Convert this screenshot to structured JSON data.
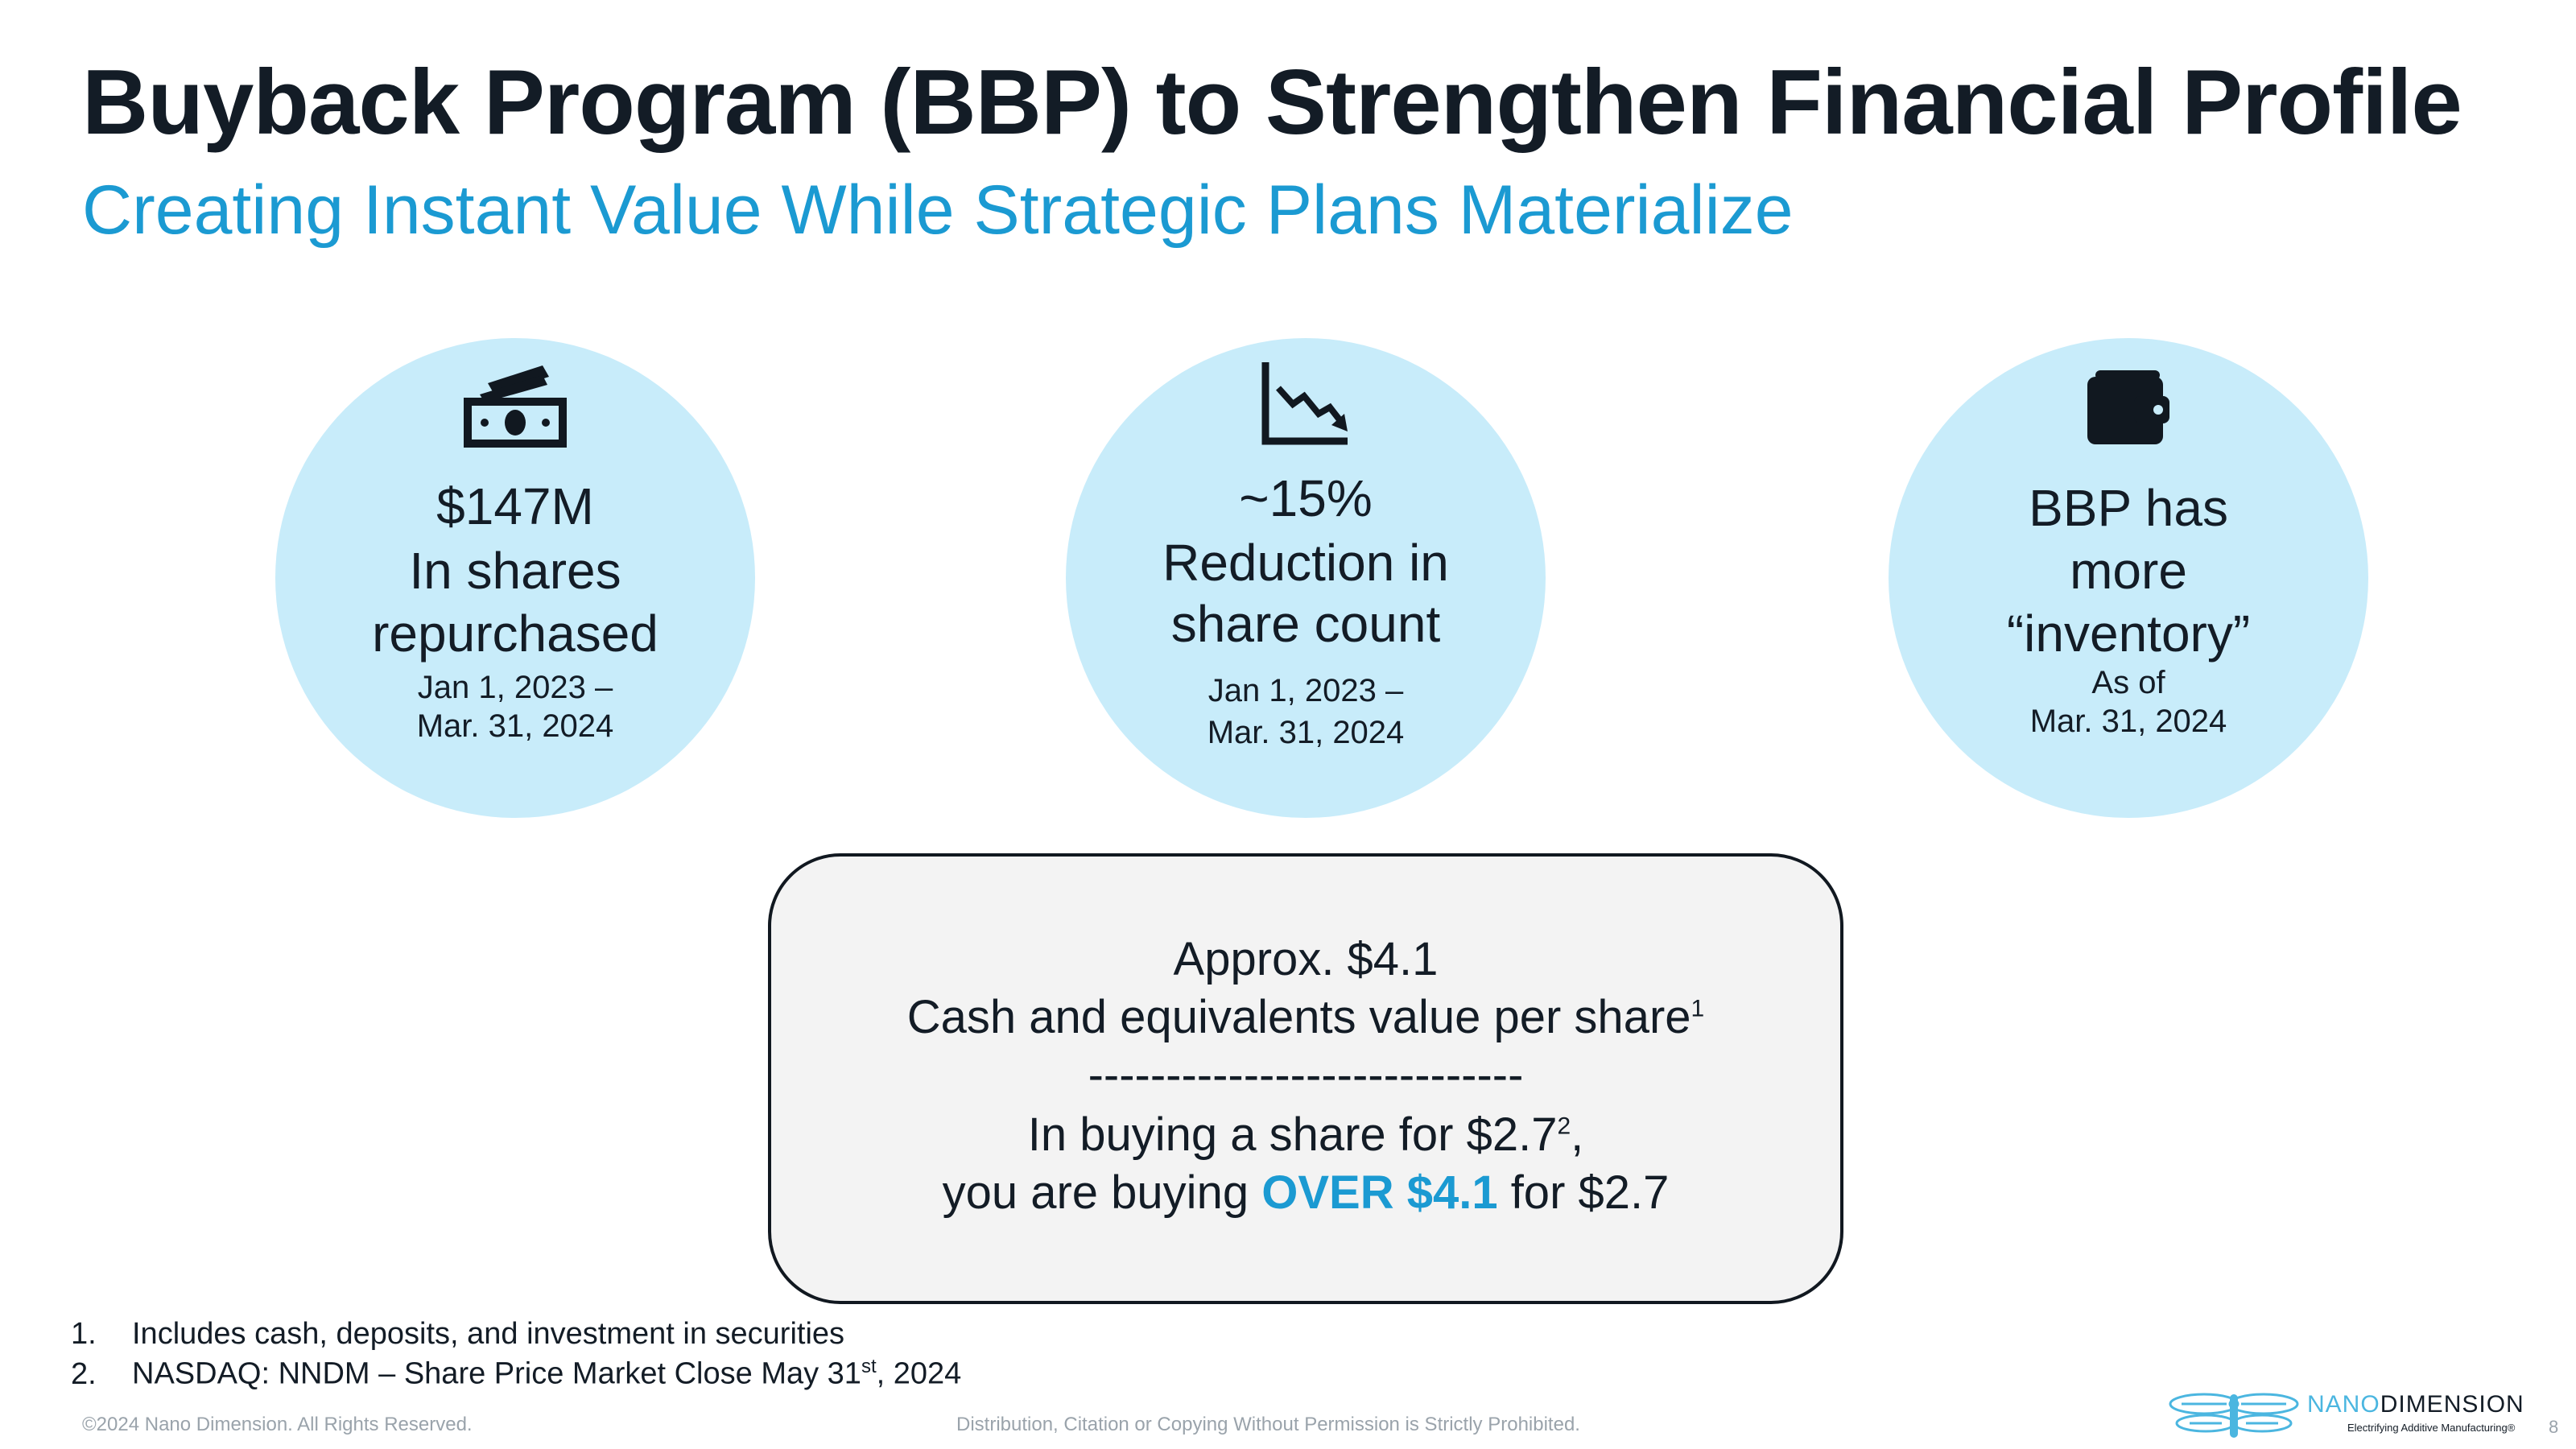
{
  "title": "Buyback Program (BBP) to Strengthen Financial Profile",
  "subtitle": "Creating Instant Value While Strategic Plans Materialize",
  "colors": {
    "accent": "#1b9ad2",
    "circle_fill": "#c8ecfa",
    "box_fill": "#f3f3f3",
    "text": "#131c26"
  },
  "cards": [
    {
      "icon": "cash-icon",
      "lines": [
        "$147M",
        "In shares",
        "repurchased"
      ],
      "date_lines": [
        "Jan 1, 2023 –",
        "Mar. 31, 2024"
      ]
    },
    {
      "icon": "downtrend-chart-icon",
      "lines": [
        "~15%",
        "Reduction in",
        "share count"
      ],
      "date_lines": [
        "Jan 1, 2023 –",
        "Mar. 31, 2024"
      ]
    },
    {
      "icon": "wallet-icon",
      "lines": [
        "BBP has",
        "more",
        "“inventory”"
      ],
      "date_lines": [
        "As of",
        "Mar. 31, 2024"
      ]
    }
  ],
  "callout": {
    "line1": "Approx. $4.1",
    "line2": "Cash and equivalents value per share",
    "line2_sup": "1",
    "divider": "----------------------------",
    "line3": "In buying a share for $2.7",
    "line3_sup": "2",
    "line3_end": ",",
    "line4_prefix": "you are buying ",
    "line4_highlight": "OVER $4.1",
    "line4_suffix": " for $2.7"
  },
  "footnotes": [
    {
      "num": "1.",
      "text": "Includes cash, deposits, and investment in securities"
    },
    {
      "num": "2.",
      "text_before": "NASDAQ: NNDM – Share Price Market Close May 31",
      "sup": "st",
      "text_after": ", 2024"
    }
  ],
  "footer": {
    "copyright": "©2024 Nano Dimension. All Rights Reserved.",
    "notice": "Distribution, Citation or Copying Without Permission is Strictly Prohibited.",
    "logo_name_1": "NANO",
    "logo_name_2": "DIMENSION",
    "logo_tagline": "Electrifying Additive Manufacturing®",
    "page_number": "8"
  }
}
